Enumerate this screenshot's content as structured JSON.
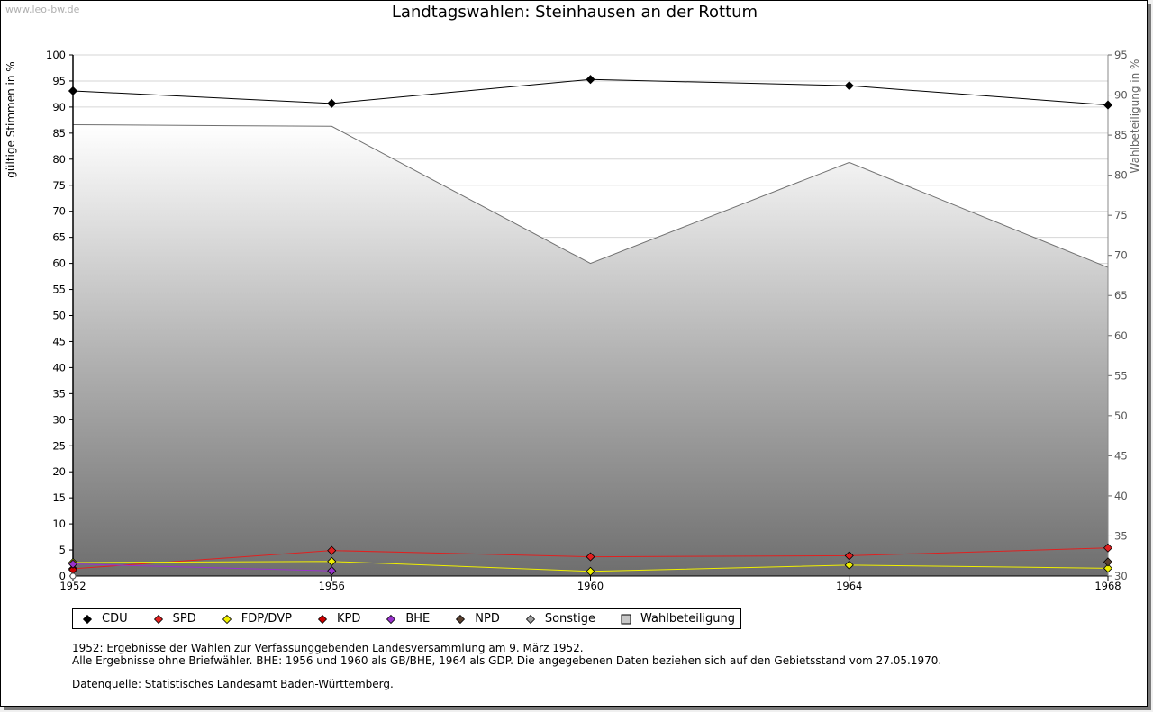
{
  "watermark": "www.leo-bw.de",
  "chart_data": {
    "type": "line",
    "title": "Landtagswahlen: Steinhausen an der Rottum",
    "ylabel": "gültige Stimmen in %",
    "y2label": "Wahlbeteiligung in %",
    "ylim": [
      0,
      100
    ],
    "y2lim": [
      30,
      95
    ],
    "yticks": [
      "0",
      "5",
      "10",
      "15",
      "20",
      "25",
      "30",
      "35",
      "40",
      "45",
      "50",
      "55",
      "60",
      "65",
      "70",
      "75",
      "80",
      "85",
      "90",
      "95",
      "100"
    ],
    "y2ticks": [
      "30",
      "35",
      "40",
      "45",
      "50",
      "55",
      "60",
      "65",
      "70",
      "75",
      "80",
      "85",
      "90",
      "95"
    ],
    "categories": [
      "1952",
      "1956",
      "1960",
      "1964",
      "1968"
    ],
    "turnout": {
      "name": "Wahlbeteiligung",
      "values": [
        86.3,
        86.1,
        69.0,
        81.6,
        68.5
      ]
    },
    "series": [
      {
        "name": "CDU",
        "color": "#000000",
        "values": [
          93.1,
          90.7,
          95.3,
          94.1,
          90.4
        ]
      },
      {
        "name": "SPD",
        "color": "#e02020",
        "values": [
          1.4,
          4.9,
          3.7,
          3.9,
          5.4
        ]
      },
      {
        "name": "FDP/DVP",
        "color": "#f0f000",
        "values": [
          2.6,
          2.8,
          0.9,
          2.1,
          1.5
        ]
      },
      {
        "name": "KPD",
        "color": "#cc0000",
        "values": [
          1.2,
          null,
          null,
          null,
          null
        ]
      },
      {
        "name": "BHE",
        "color": "#9933cc",
        "values": [
          2.3,
          1.0,
          null,
          null,
          null
        ]
      },
      {
        "name": "NPD",
        "color": "#5a4030",
        "values": [
          null,
          null,
          null,
          null,
          2.7
        ]
      },
      {
        "name": "Sonstige",
        "color": "#a0a0a0",
        "values": [
          0.0,
          null,
          null,
          null,
          null
        ]
      }
    ]
  },
  "legend": [
    {
      "label": "CDU",
      "color": "#000000",
      "shape": "diamond"
    },
    {
      "label": "SPD",
      "color": "#e02020",
      "shape": "diamond"
    },
    {
      "label": "FDP/DVP",
      "color": "#f0f000",
      "shape": "diamond"
    },
    {
      "label": "KPD",
      "color": "#cc0000",
      "shape": "diamond"
    },
    {
      "label": "BHE",
      "color": "#9933cc",
      "shape": "diamond"
    },
    {
      "label": "NPD",
      "color": "#5a4030",
      "shape": "diamond"
    },
    {
      "label": "Sonstige",
      "color": "#a0a0a0",
      "shape": "diamond"
    },
    {
      "label": "Wahlbeteiligung",
      "color": "#c8c8c8",
      "shape": "square"
    }
  ],
  "notes": {
    "line1": "1952: Ergebnisse der Wahlen zur Verfassunggebenden Landesversammlung am 9. März 1952.",
    "line2": "Alle Ergebnisse ohne Briefwähler. BHE: 1956 und 1960 als GB/BHE, 1964 als GDP. Die angegebenen Daten beziehen sich auf den Gebietsstand vom 27.05.1970.",
    "source": "Datenquelle: Statistisches Landesamt Baden-Württemberg."
  }
}
